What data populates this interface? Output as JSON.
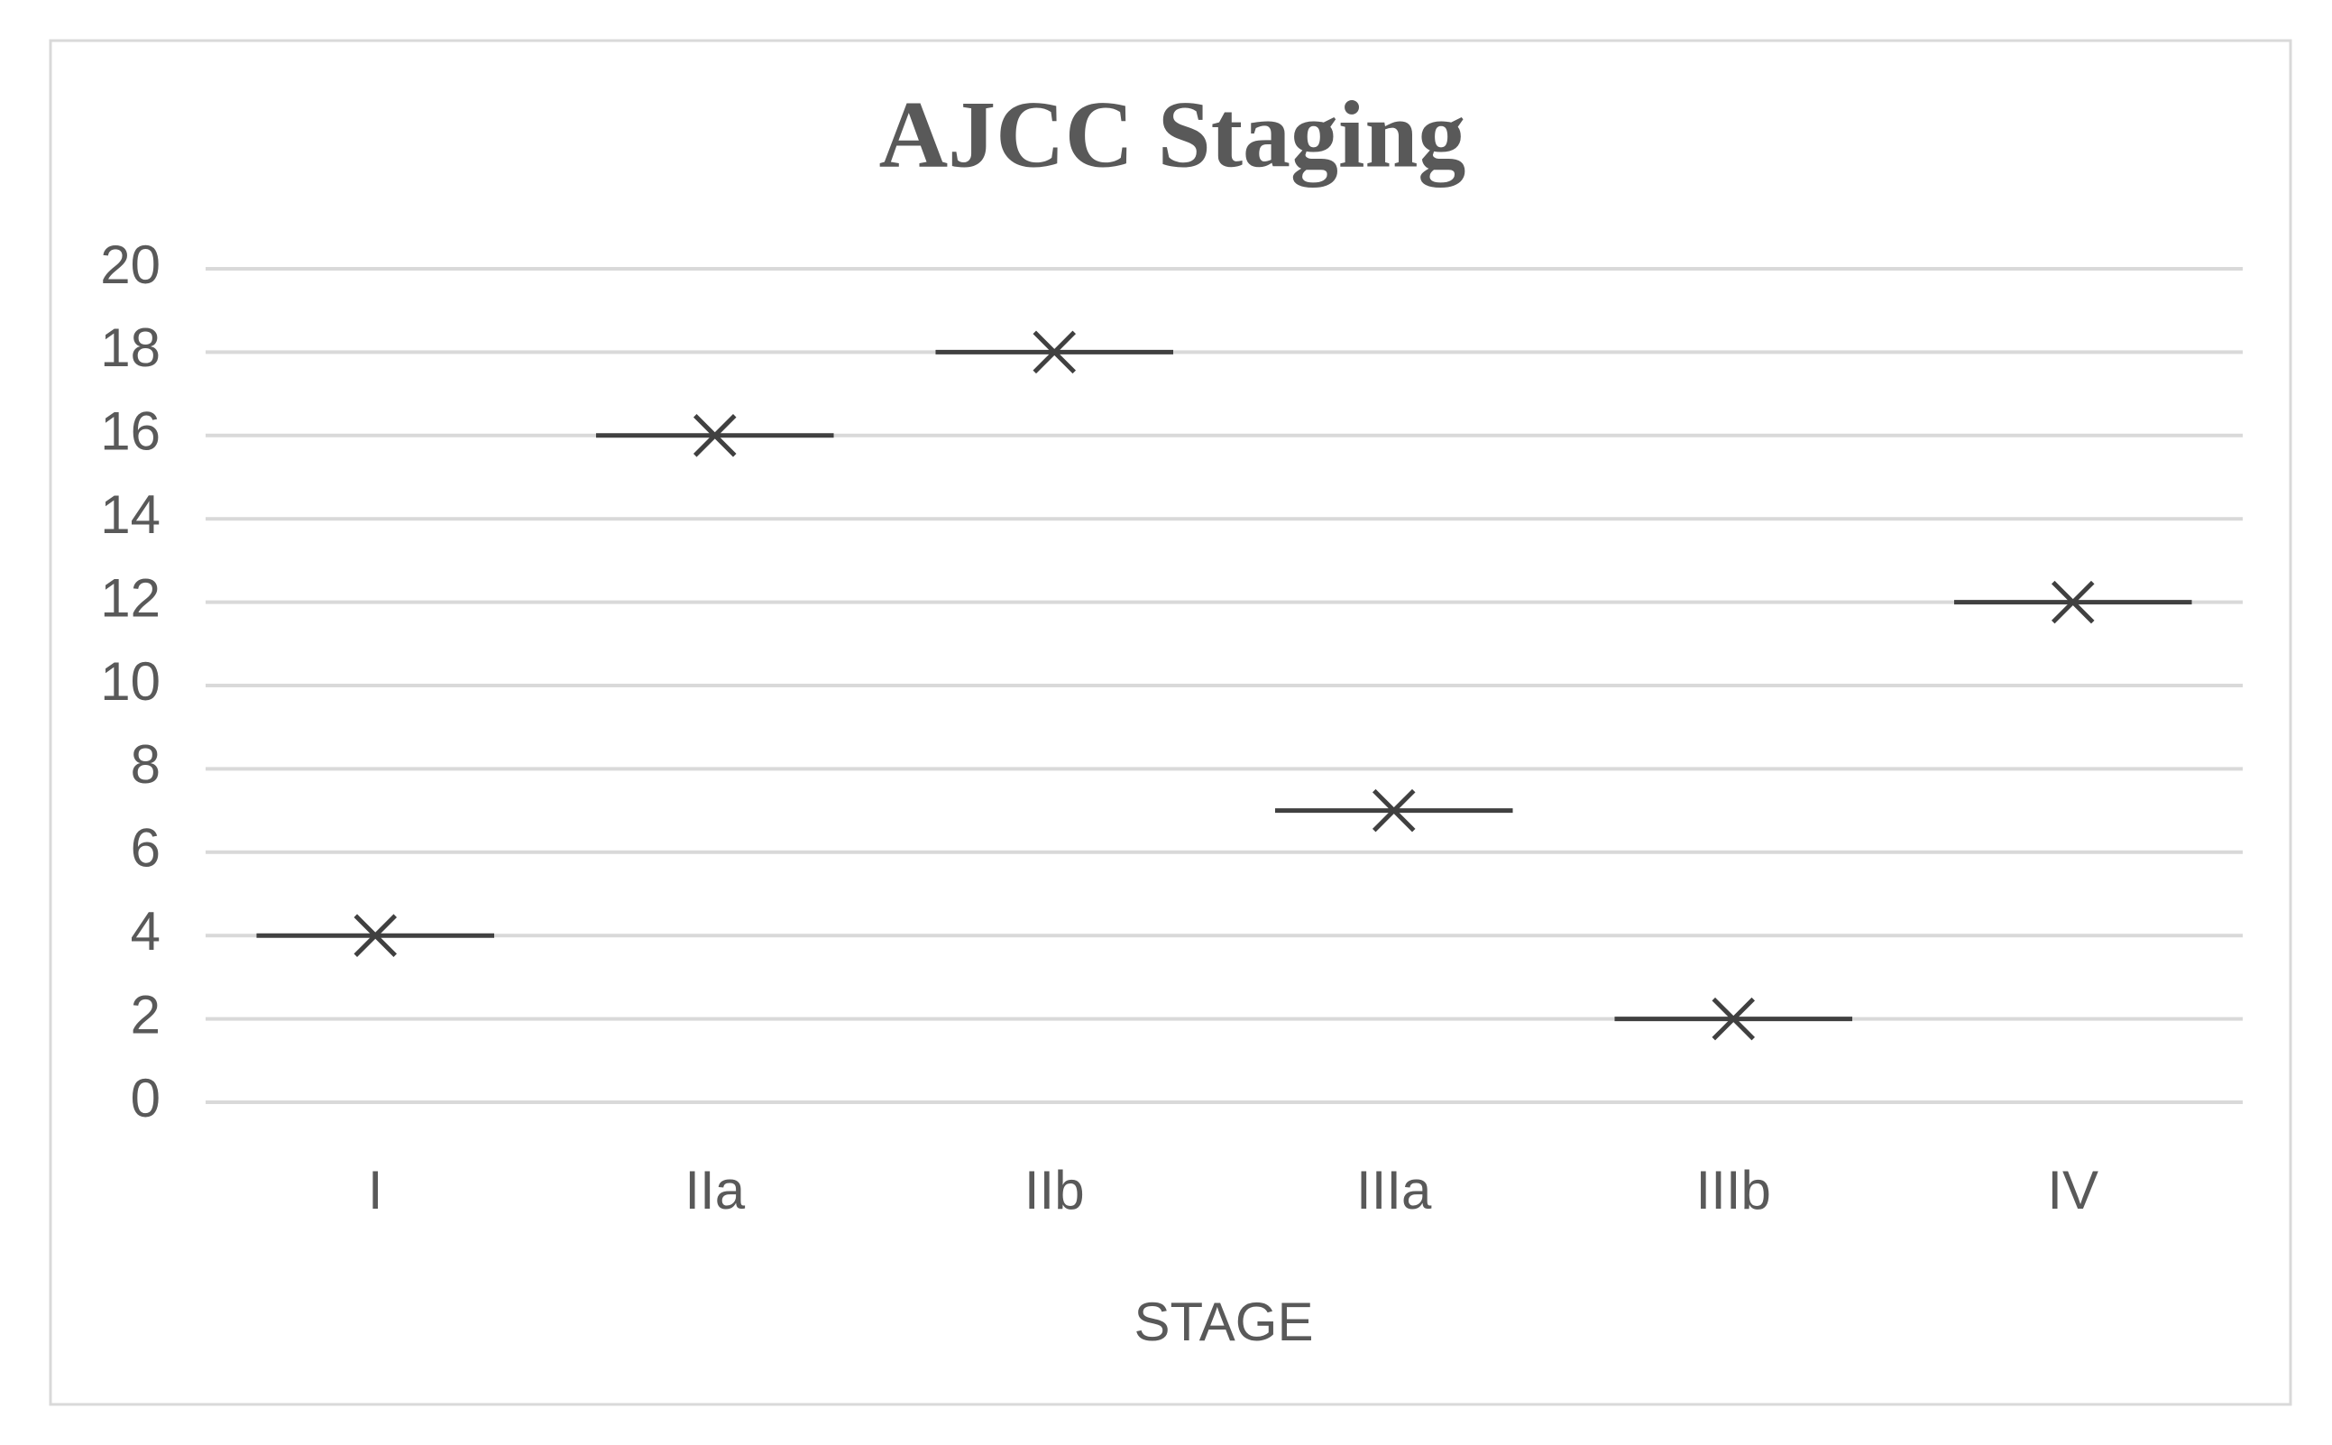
{
  "chart_data": {
    "type": "scatter",
    "title": "AJCC Staging",
    "x_label": "STAGE",
    "categories": [
      "I",
      "IIa",
      "IIb",
      "IIIa",
      "IIIb",
      "IV"
    ],
    "values": [
      4,
      16,
      18,
      7,
      2,
      12
    ],
    "color": "#404040",
    "ylim": [
      0,
      20
    ],
    "yticks": [
      0,
      2,
      4,
      6,
      8,
      10,
      12,
      14,
      16,
      18,
      20
    ],
    "grid": true
  }
}
